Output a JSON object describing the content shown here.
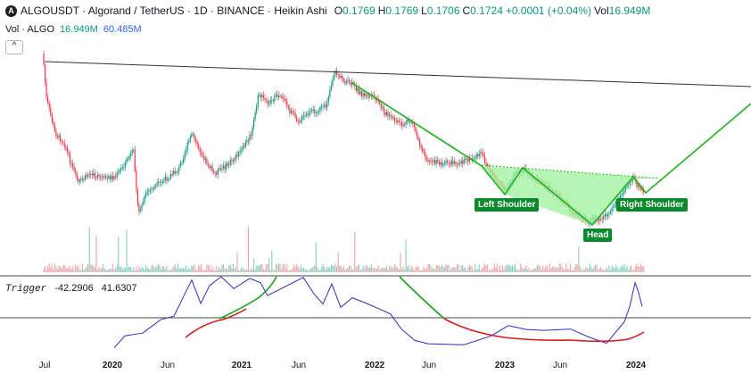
{
  "header": {
    "symbol_title": "ALGOUSDT · Algorand / TetherUS · 1D · BINANCE · Heikin Ashi",
    "ohlc": [
      {
        "key": "O",
        "value": "0.1769"
      },
      {
        "key": "H",
        "value": "0.1769"
      },
      {
        "key": "L",
        "value": "0.1706"
      },
      {
        "key": "C",
        "value": "0.1724"
      },
      {
        "key": "",
        "value": "+0.0001 (+0.04%)"
      },
      {
        "key": "Vol",
        "value": "16.949M"
      }
    ],
    "volume_label": "Vol · ALGO",
    "volume_value1": "16.949M",
    "volume_value2": "60.485M",
    "collapse_icon": "^"
  },
  "pattern_labels": {
    "left_shoulder": "Left Shoulder",
    "head": "Head",
    "right_shoulder": "Right Shoulder"
  },
  "indicator": {
    "name": "Trigger",
    "value1": "-42.2906",
    "value2": "41.6307"
  },
  "time_axis": [
    {
      "label": "Jul",
      "year": false
    },
    {
      "label": "2020",
      "year": true
    },
    {
      "label": "Jun",
      "year": false
    },
    {
      "label": "2021",
      "year": true
    },
    {
      "label": "Jun",
      "year": false
    },
    {
      "label": "2022",
      "year": true
    },
    {
      "label": "Jun",
      "year": false
    },
    {
      "label": "2023",
      "year": true
    },
    {
      "label": "Jun",
      "year": false
    },
    {
      "label": "2024",
      "year": true
    }
  ],
  "colors": {
    "up": "#089981",
    "down": "#f23645",
    "pattern_line": "#16b816",
    "pattern_fill": "#9ef29e",
    "trigger_blue": "#2b2bd6",
    "trigger_red": "#e01818",
    "trigger_green": "#15a515",
    "trendline": "#333333"
  }
}
